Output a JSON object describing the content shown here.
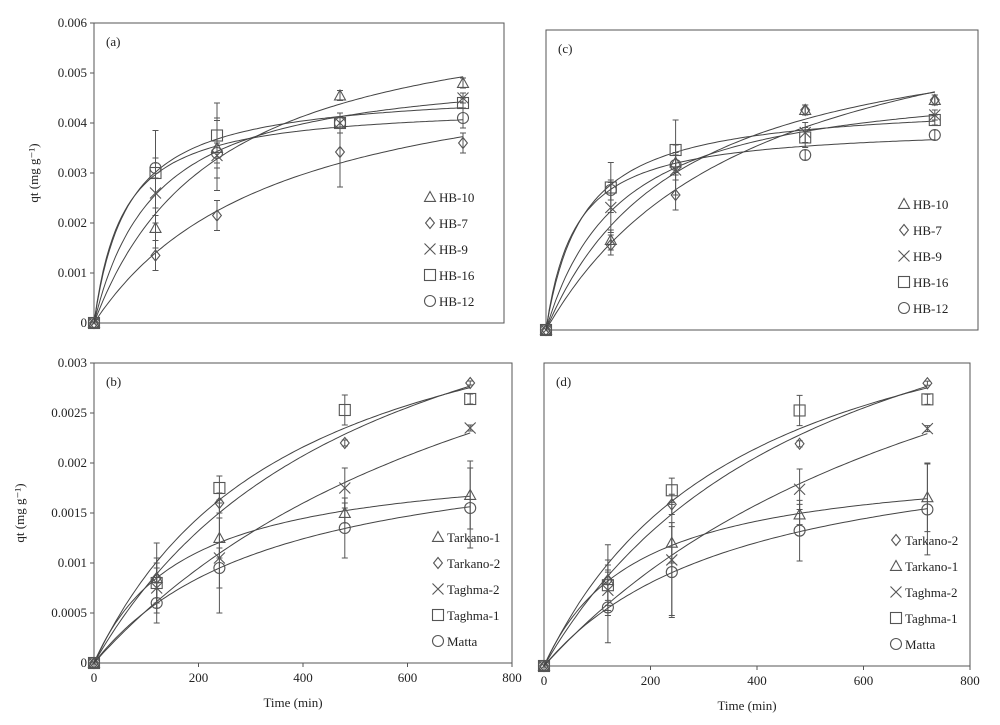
{
  "chart_data": [
    {
      "type": "scatter",
      "panel": "(a)",
      "xlabel": "",
      "ylabel": "qt (mg g⁻¹)",
      "xlim": [
        0,
        800
      ],
      "ylim": [
        0,
        0.006
      ],
      "x_ticks": [],
      "y_ticks": [
        "0",
        "0.001",
        "0.002",
        "0.003",
        "0.004",
        "0.005",
        "0.006"
      ],
      "legend_position": "bottom-right",
      "fit_curves": true,
      "series": [
        {
          "name": "HB-10",
          "marker": "triangle",
          "x": [
            0,
            120,
            240,
            480,
            720
          ],
          "y": [
            0,
            0.0019,
            0.0035,
            0.00455,
            0.0048
          ],
          "err": [
            0,
            0.0004,
            0.0006,
            0.0001,
            0.0001
          ]
        },
        {
          "name": "HB-7",
          "marker": "diamond",
          "x": [
            0,
            120,
            240,
            480,
            720
          ],
          "y": [
            0,
            0.00135,
            0.00215,
            0.00342,
            0.0036
          ],
          "err": [
            0,
            0.0003,
            0.0003,
            0.0007,
            0.0002
          ]
        },
        {
          "name": "HB-9",
          "marker": "cross",
          "x": [
            0,
            120,
            240,
            480,
            720
          ],
          "y": [
            0,
            0.0026,
            0.00335,
            0.004,
            0.0045
          ],
          "err": [
            0,
            0.0006,
            0.0007,
            0.0002,
            0.0001
          ]
        },
        {
          "name": "HB-16",
          "marker": "square",
          "x": [
            0,
            120,
            240,
            480,
            720
          ],
          "y": [
            0,
            0.003,
            0.00375,
            0.004,
            0.0044
          ],
          "err": [
            0,
            0.00085,
            0.00065,
            0.0002,
            0.0001
          ]
        },
        {
          "name": "HB-12",
          "marker": "circle",
          "x": [
            0,
            120,
            240,
            480,
            720
          ],
          "y": [
            0,
            0.0031,
            0.0034,
            0.004,
            0.0041
          ],
          "err": [
            0,
            0.0002,
            0.0002,
            0.0002,
            0.0002
          ]
        }
      ]
    },
    {
      "type": "scatter",
      "panel": "(c)",
      "xlabel": "",
      "ylabel": "",
      "xlim": [
        0,
        800
      ],
      "ylim": [
        0,
        0.006
      ],
      "x_ticks": [],
      "y_ticks": [],
      "legend_position": "bottom-right",
      "fit_curves": true,
      "series": [
        {
          "name": "HB-10",
          "marker": "triangle",
          "x": [
            0,
            120,
            240,
            480,
            720
          ],
          "y": [
            0,
            0.0018,
            0.00335,
            0.0044,
            0.0046
          ],
          "err": [
            0,
            0.0002,
            0.0002,
            0.0001,
            0.0001
          ]
        },
        {
          "name": "HB-7",
          "marker": "diamond",
          "x": [
            0,
            120,
            240,
            480,
            720
          ],
          "y": [
            0,
            0.0017,
            0.0027,
            0.0044,
            0.0046
          ],
          "err": [
            0,
            0.0002,
            0.0003,
            0.0001,
            0.0001
          ]
        },
        {
          "name": "HB-9",
          "marker": "cross",
          "x": [
            0,
            120,
            240,
            480,
            720
          ],
          "y": [
            0,
            0.00245,
            0.0032,
            0.00395,
            0.0043
          ],
          "err": [
            0,
            0.0005,
            0.0005,
            0.0002,
            0.0001
          ]
        },
        {
          "name": "HB-16",
          "marker": "square",
          "x": [
            0,
            120,
            240,
            480,
            720
          ],
          "y": [
            0,
            0.00285,
            0.0036,
            0.00385,
            0.0042
          ],
          "err": [
            0,
            0.0005,
            0.0006,
            0.0002,
            0.0001
          ]
        },
        {
          "name": "HB-12",
          "marker": "circle",
          "x": [
            0,
            120,
            240,
            480,
            720
          ],
          "y": [
            0,
            0.0028,
            0.0033,
            0.0035,
            0.0039
          ],
          "err": [
            0,
            0.0002,
            0.0002,
            0.0001,
            0.0001
          ]
        }
      ]
    },
    {
      "type": "scatter",
      "panel": "(b)",
      "xlabel": "Time (min)",
      "ylabel": "qt (mg g⁻¹)",
      "xlim": [
        0,
        800
      ],
      "ylim": [
        0,
        0.003
      ],
      "x_ticks": [
        "0",
        "200",
        "400",
        "600",
        "800"
      ],
      "y_ticks": [
        "0",
        "0.0005",
        "0.001",
        "0.0015",
        "0.002",
        "0.0025",
        "0.003"
      ],
      "legend_position": "bottom-right",
      "fit_curves": true,
      "series": [
        {
          "name": "Tarkano-1",
          "marker": "triangle",
          "x": [
            0,
            120,
            240,
            480,
            720
          ],
          "y": [
            0,
            0.00085,
            0.00125,
            0.0015,
            0.00168
          ],
          "err": [
            0,
            0.00035,
            0.0002,
            0.0001,
            0.00034
          ]
        },
        {
          "name": "Tarkano-2",
          "marker": "diamond",
          "x": [
            0,
            120,
            240,
            480,
            720
          ],
          "y": [
            0,
            0.00085,
            0.0016,
            0.0022,
            0.0028
          ],
          "err": [
            0,
            0.0002,
            0.0001,
            3e-05,
            2e-05
          ]
        },
        {
          "name": "Taghma-2",
          "marker": "cross",
          "x": [
            0,
            120,
            240,
            480,
            720
          ],
          "y": [
            0,
            0.00075,
            0.00105,
            0.00175,
            0.00235
          ],
          "err": [
            0,
            0.0002,
            0.00055,
            0.0002,
            3e-05
          ]
        },
        {
          "name": "Taghma-1",
          "marker": "square",
          "x": [
            0,
            120,
            240,
            480,
            720
          ],
          "y": [
            0,
            0.0008,
            0.00175,
            0.00253,
            0.00264
          ],
          "err": [
            0,
            0.0002,
            0.00012,
            0.00015,
            5e-05
          ]
        },
        {
          "name": "Matta",
          "marker": "circle",
          "x": [
            0,
            120,
            240,
            480,
            720
          ],
          "y": [
            0,
            0.0006,
            0.00095,
            0.00135,
            0.00155
          ],
          "err": [
            0,
            0.0002,
            0.0002,
            0.0003,
            0.0004
          ]
        }
      ]
    },
    {
      "type": "scatter",
      "panel": "(d)",
      "xlabel": "Time (min)",
      "ylabel": "",
      "xlim": [
        0,
        800
      ],
      "ylim": [
        0,
        0.003
      ],
      "x_ticks": [
        "0",
        "200",
        "400",
        "600",
        "800"
      ],
      "y_ticks": [],
      "legend_position": "bottom-right",
      "fit_curves": true,
      "series": [
        {
          "name": "Tarkano-2",
          "marker": "diamond",
          "x": [
            0,
            120,
            240,
            480,
            720
          ],
          "y": [
            0,
            0.00085,
            0.0016,
            0.0022,
            0.0028
          ],
          "err": [
            0,
            0.0002,
            0.0001,
            3e-05,
            2e-05
          ]
        },
        {
          "name": "Tarkano-1",
          "marker": "triangle",
          "x": [
            0,
            120,
            240,
            480,
            720
          ],
          "y": [
            0,
            0.00085,
            0.00122,
            0.0015,
            0.00167
          ],
          "err": [
            0,
            0.00035,
            0.0002,
            0.0001,
            0.00034
          ]
        },
        {
          "name": "Taghma-2",
          "marker": "cross",
          "x": [
            0,
            120,
            240,
            480,
            720
          ],
          "y": [
            0,
            0.00075,
            0.00105,
            0.00175,
            0.00235
          ],
          "err": [
            0,
            0.0002,
            0.00055,
            0.0002,
            3e-05
          ]
        },
        {
          "name": "Taghma-1",
          "marker": "square",
          "x": [
            0,
            120,
            240,
            480,
            720
          ],
          "y": [
            0,
            0.0008,
            0.00174,
            0.00253,
            0.00264
          ],
          "err": [
            0,
            0.0002,
            0.00012,
            0.00015,
            5e-05
          ]
        },
        {
          "name": "Matta",
          "marker": "circle",
          "x": [
            0,
            120,
            240,
            480,
            720
          ],
          "y": [
            0,
            0.00058,
            0.00093,
            0.00134,
            0.00155
          ],
          "err": [
            0,
            0.00035,
            0.00045,
            0.0003,
            0.00045
          ]
        }
      ]
    }
  ]
}
